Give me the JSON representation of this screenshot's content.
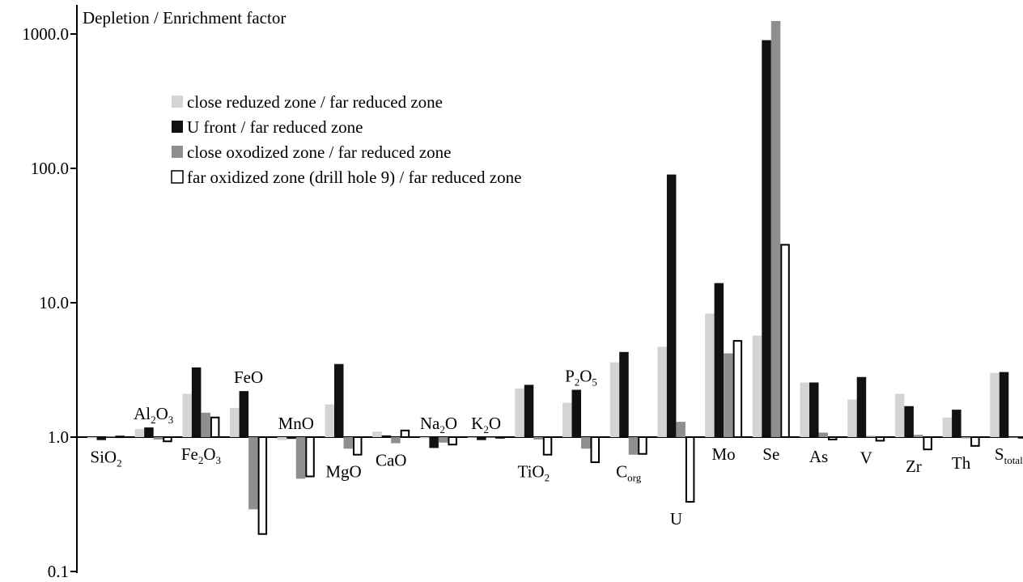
{
  "chart_data": {
    "type": "bar",
    "scale": "log",
    "baseline": 1.0,
    "ylim": [
      0.1,
      1300
    ],
    "ylabel": "Depletion / Enrichment factor",
    "yticks": [
      {
        "value": 0.1,
        "label": "0.1"
      },
      {
        "value": 1,
        "label": "1.0"
      },
      {
        "value": 10,
        "label": "10.0"
      },
      {
        "value": 100,
        "label": "100.0"
      },
      {
        "value": 1000,
        "label": "1000.0"
      }
    ],
    "categories": [
      {
        "main": "SiO",
        "sub": "2",
        "tail": "",
        "label_side": "below"
      },
      {
        "main": "Al",
        "sub": "2",
        "tail": "O",
        "sub2": "3",
        "label_side": "above"
      },
      {
        "main": "Fe",
        "sub": "2",
        "tail": "O",
        "sub2": "3",
        "label_side": "below"
      },
      {
        "main": "FeO",
        "sub": "",
        "tail": "",
        "label_side": "above"
      },
      {
        "main": "MnO",
        "sub": "",
        "tail": "",
        "label_side": "above"
      },
      {
        "main": "MgO",
        "sub": "",
        "tail": "",
        "label_side": "below"
      },
      {
        "main": "CaO",
        "sub": "",
        "tail": "",
        "label_side": "below"
      },
      {
        "main": "Na",
        "sub": "2",
        "tail": "O",
        "label_side": "above"
      },
      {
        "main": "K",
        "sub": "2",
        "tail": "O",
        "label_side": "above"
      },
      {
        "main": "TiO",
        "sub": "2",
        "tail": "",
        "label_side": "below"
      },
      {
        "main": "P",
        "sub": "2",
        "tail": "O",
        "sub2": "5",
        "label_side": "above"
      },
      {
        "main": "C",
        "sub": "org",
        "tail": "",
        "label_side": "below"
      },
      {
        "main": "U",
        "sub": "",
        "tail": "",
        "label_side": "below"
      },
      {
        "main": "Mo",
        "sub": "",
        "tail": "",
        "label_side": "below"
      },
      {
        "main": "Se",
        "sub": "",
        "tail": "",
        "label_side": "below"
      },
      {
        "main": "As",
        "sub": "",
        "tail": "",
        "label_side": "below"
      },
      {
        "main": "V",
        "sub": "",
        "tail": "",
        "label_side": "below"
      },
      {
        "main": "Zr",
        "sub": "",
        "tail": "",
        "label_side": "below"
      },
      {
        "main": "Th",
        "sub": "",
        "tail": "",
        "label_side": "below"
      },
      {
        "main": "S",
        "sub": "total",
        "tail": "",
        "label_side": "below"
      }
    ],
    "series": [
      {
        "name": "close reduzed zone / far reduced zone",
        "color": "#d4d4d4",
        "stroke": "none",
        "values": [
          0.98,
          1.15,
          2.1,
          1.65,
          0.95,
          1.75,
          1.1,
          0.98,
          0.99,
          2.3,
          1.8,
          3.6,
          4.7,
          8.3,
          5.7,
          2.55,
          1.9,
          2.1,
          1.4,
          3.0
        ]
      },
      {
        "name": "U front / far reduced zone",
        "color": "#111111",
        "stroke": "none",
        "values": [
          0.95,
          1.18,
          3.3,
          2.2,
          0.97,
          3.5,
          1.03,
          0.83,
          0.95,
          2.45,
          2.25,
          4.3,
          90,
          14,
          900,
          2.55,
          2.8,
          1.7,
          1.6,
          3.05
        ]
      },
      {
        "name": "close oxodized zone / far reduced zone",
        "color": "#8f8f8f",
        "stroke": "none",
        "values": [
          1.01,
          0.96,
          1.52,
          0.29,
          0.49,
          0.82,
          0.9,
          0.91,
          1.0,
          0.96,
          0.82,
          0.74,
          1.3,
          4.2,
          1250,
          1.08,
          1.02,
          1.04,
          0.98,
          1.0
        ]
      },
      {
        "name": "far oxidized zone (drill hole 9) / far reduced zone",
        "color": "#ffffff",
        "stroke": "#000000",
        "values": [
          1.01,
          0.93,
          1.4,
          0.19,
          0.51,
          0.74,
          1.12,
          0.88,
          0.99,
          0.74,
          0.65,
          0.75,
          0.33,
          5.2,
          27,
          0.96,
          0.94,
          0.81,
          0.86,
          1.0
        ]
      }
    ],
    "legend_position": "upper-left",
    "grid": false
  }
}
